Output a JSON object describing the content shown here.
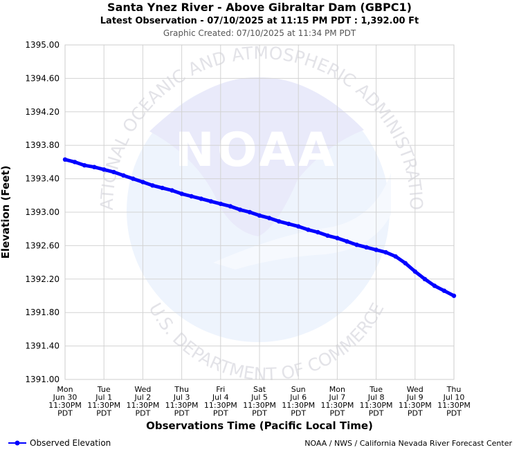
{
  "chart_data": {
    "type": "line",
    "title": "Santa Ynez River - Above Gibraltar Dam (GBPC1)",
    "subtitle": "Latest Observation - 07/10/2025 at 11:15 PM PDT : 1,392.00 Ft",
    "created": "Graphic Created: 07/10/2025 at 11:34 PM PDT",
    "xlabel": "Observations Time (Pacific Local Time)",
    "ylabel": "Elevation (Feet)",
    "ylim": [
      1391.0,
      1395.0
    ],
    "yticks": [
      "1395.00",
      "1394.60",
      "1394.20",
      "1393.80",
      "1393.40",
      "1393.00",
      "1392.60",
      "1392.20",
      "1391.80",
      "1391.40",
      "1391.00"
    ],
    "ytick_values": [
      1395.0,
      1394.6,
      1394.2,
      1393.8,
      1393.4,
      1393.0,
      1392.6,
      1392.2,
      1391.8,
      1391.4,
      1391.0
    ],
    "xticks": [
      [
        "Mon",
        "Jun 30",
        "11:30PM",
        "PDT"
      ],
      [
        "Tue",
        "Jul 1",
        "11:30PM",
        "PDT"
      ],
      [
        "Wed",
        "Jul 2",
        "11:30PM",
        "PDT"
      ],
      [
        "Thu",
        "Jul 3",
        "11:30PM",
        "PDT"
      ],
      [
        "Fri",
        "Jul 4",
        "11:30PM",
        "PDT"
      ],
      [
        "Sat",
        "Jul 5",
        "11:30PM",
        "PDT"
      ],
      [
        "Sun",
        "Jul 6",
        "11:30PM",
        "PDT"
      ],
      [
        "Mon",
        "Jul 7",
        "11:30PM",
        "PDT"
      ],
      [
        "Tue",
        "Jul 8",
        "11:30PM",
        "PDT"
      ],
      [
        "Wed",
        "Jul 9",
        "11:30PM",
        "PDT"
      ],
      [
        "Thu",
        "Jul 10",
        "11:30PM",
        "PDT"
      ]
    ],
    "x_day_range": [
      0,
      10
    ],
    "grid": true,
    "legend_position": "bottom-left",
    "series": [
      {
        "name": "Observed Elevation",
        "color": "#0000ff",
        "x": [
          0.0,
          0.25,
          0.5,
          0.75,
          1.0,
          1.25,
          1.5,
          1.75,
          2.0,
          2.25,
          2.5,
          2.75,
          3.0,
          3.25,
          3.5,
          3.75,
          4.0,
          4.25,
          4.5,
          4.75,
          5.0,
          5.25,
          5.5,
          5.75,
          6.0,
          6.25,
          6.5,
          6.75,
          7.0,
          7.25,
          7.5,
          7.75,
          8.0,
          8.25,
          8.5,
          8.75,
          9.0,
          9.25,
          9.5,
          9.75,
          10.0
        ],
        "y": [
          1393.63,
          1393.6,
          1393.56,
          1393.54,
          1393.51,
          1393.48,
          1393.44,
          1393.4,
          1393.36,
          1393.32,
          1393.29,
          1393.26,
          1393.22,
          1393.19,
          1393.16,
          1393.13,
          1393.1,
          1393.07,
          1393.03,
          1393.0,
          1392.96,
          1392.93,
          1392.89,
          1392.86,
          1392.83,
          1392.79,
          1392.76,
          1392.72,
          1392.69,
          1392.65,
          1392.61,
          1392.58,
          1392.55,
          1392.52,
          1392.47,
          1392.39,
          1392.29,
          1392.2,
          1392.12,
          1392.06,
          1392.0
        ]
      }
    ],
    "watermark": {
      "logo_text": "NOAA",
      "top_text": "NATIONAL OCEANIC AND ATMOSPHERIC ADMINISTRATION",
      "bottom_text": "U.S. DEPARTMENT OF COMMERCE"
    },
    "credit": "NOAA / NWS / California Nevada River Forecast Center"
  }
}
